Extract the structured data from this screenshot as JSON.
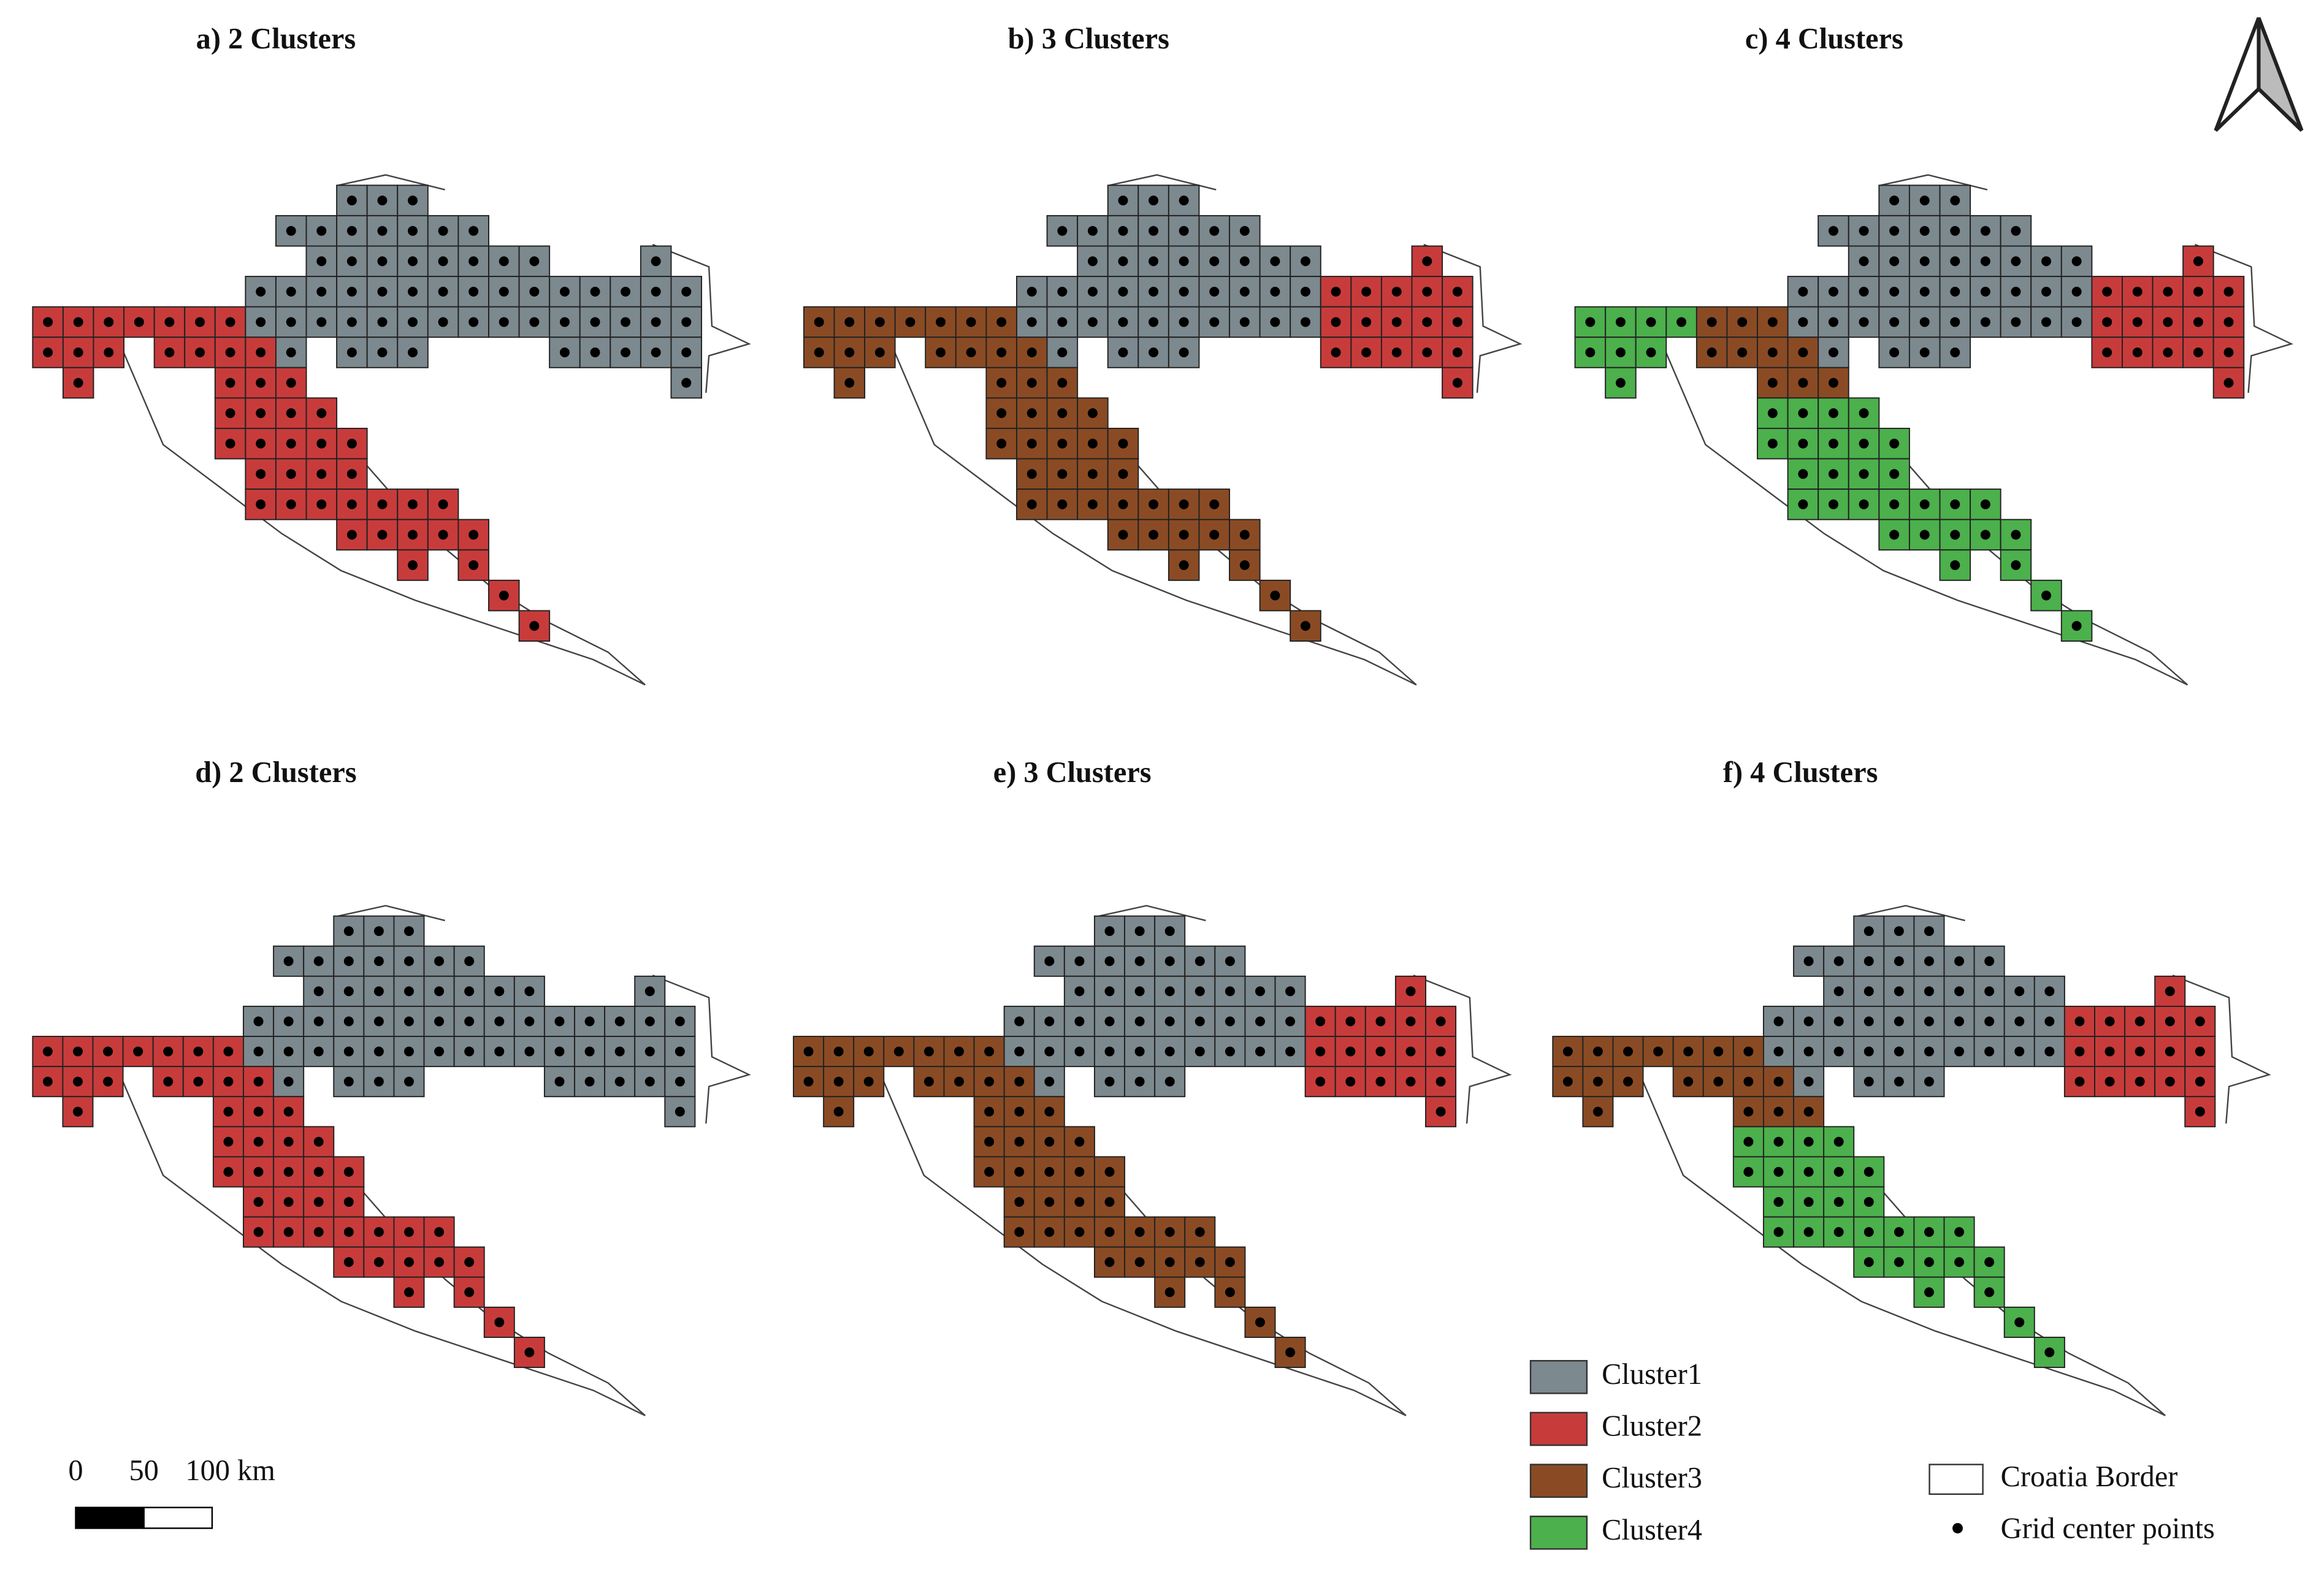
{
  "panels": [
    {
      "title": "a) 2 Clusters"
    },
    {
      "title": "b)  3 Clusters"
    },
    {
      "title": "c) 4 Clusters"
    },
    {
      "title": "d) 2 Clusters"
    },
    {
      "title": "e)  3 Clusters"
    },
    {
      "title": "f) 4 Clusters"
    }
  ],
  "legend": {
    "clusters": [
      {
        "label": "Cluster1",
        "color": "#7c898e"
      },
      {
        "label": "Cluster2",
        "color": "#c83b3b"
      },
      {
        "label": "Cluster3",
        "color": "#8a4b24"
      },
      {
        "label": "Cluster4",
        "color": "#4cb04c"
      }
    ],
    "border": {
      "label": "Croatia Border"
    },
    "points": {
      "label": "Grid center points"
    }
  },
  "scale_bar": {
    "labels": [
      "0",
      "50",
      "100 km"
    ]
  }
}
